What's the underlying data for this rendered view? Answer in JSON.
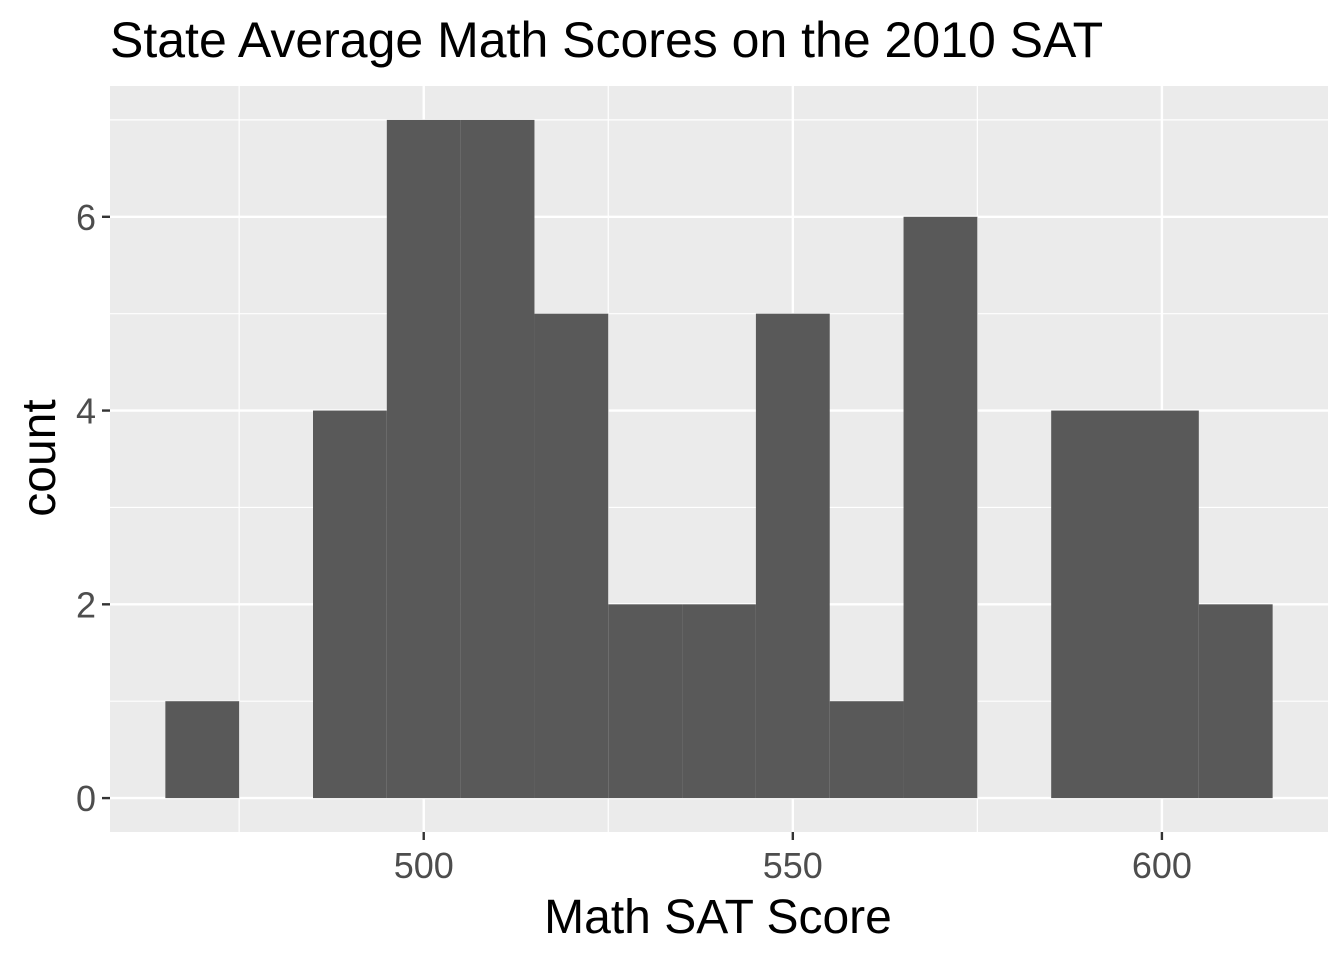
{
  "chart_data": {
    "type": "bar",
    "subtype": "histogram",
    "title": "State Average Math Scores on the 2010 SAT",
    "xlabel": "Math SAT Score",
    "ylabel": "count",
    "bin_width": 10,
    "bins": [
      {
        "start": 465,
        "end": 475,
        "count": 1
      },
      {
        "start": 475,
        "end": 485,
        "count": 0
      },
      {
        "start": 485,
        "end": 495,
        "count": 4
      },
      {
        "start": 495,
        "end": 505,
        "count": 7
      },
      {
        "start": 505,
        "end": 515,
        "count": 7
      },
      {
        "start": 515,
        "end": 525,
        "count": 5
      },
      {
        "start": 525,
        "end": 535,
        "count": 2
      },
      {
        "start": 535,
        "end": 545,
        "count": 2
      },
      {
        "start": 545,
        "end": 555,
        "count": 5
      },
      {
        "start": 555,
        "end": 565,
        "count": 1
      },
      {
        "start": 565,
        "end": 575,
        "count": 6
      },
      {
        "start": 575,
        "end": 585,
        "count": 0
      },
      {
        "start": 585,
        "end": 595,
        "count": 4
      },
      {
        "start": 595,
        "end": 605,
        "count": 4
      },
      {
        "start": 605,
        "end": 615,
        "count": 2
      }
    ],
    "xlim": [
      457.5,
      622.5
    ],
    "ylim": [
      -0.35,
      7.35
    ],
    "x_ticks": [
      500,
      550,
      600
    ],
    "x_tick_labels": [
      "500",
      "550",
      "600"
    ],
    "y_ticks": [
      0,
      2,
      4,
      6
    ],
    "y_tick_labels": [
      "0",
      "2",
      "4",
      "6"
    ],
    "grid": true,
    "colors": {
      "bar": "#595959",
      "panel_background": "#ebebeb",
      "grid": "#ffffff",
      "tick_text": "#4d4d4d",
      "tick_mark": "#333333"
    }
  }
}
